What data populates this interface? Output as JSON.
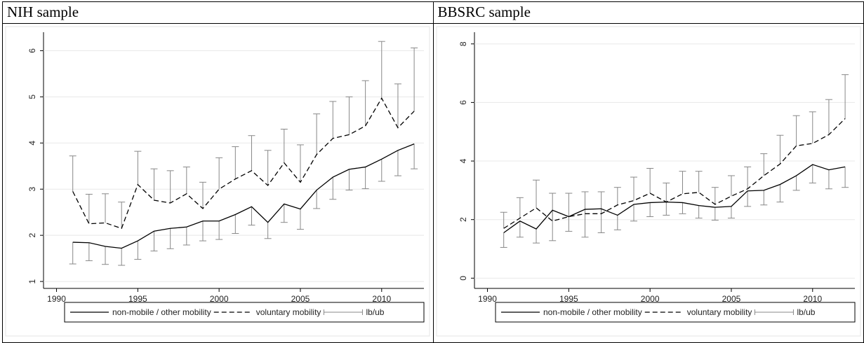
{
  "chart_data": [
    {
      "type": "line",
      "title": "NIH sample",
      "x": [
        1991,
        1992,
        1993,
        1994,
        1995,
        1996,
        1997,
        1998,
        1999,
        2000,
        2001,
        2002,
        2003,
        2004,
        2005,
        2006,
        2007,
        2008,
        2009,
        2010,
        2011,
        2012
      ],
      "series": [
        {
          "name": "non-mobile / other mobility",
          "color": "#000000",
          "dash": "solid",
          "values": [
            1.85,
            1.84,
            1.76,
            1.72,
            1.88,
            2.09,
            2.15,
            2.18,
            2.31,
            2.31,
            2.45,
            2.62,
            2.28,
            2.68,
            2.57,
            2.98,
            3.26,
            3.43,
            3.48,
            3.65,
            3.84,
            3.98
          ]
        },
        {
          "name": "voluntary mobility",
          "color": "#000000",
          "dash": "dashed",
          "values": [
            2.95,
            2.25,
            2.27,
            2.15,
            3.1,
            2.76,
            2.7,
            2.9,
            2.58,
            3.0,
            3.22,
            3.4,
            3.08,
            3.57,
            3.15,
            3.75,
            4.1,
            4.18,
            4.37,
            4.97,
            4.33,
            4.69
          ]
        }
      ],
      "error_bars": {
        "name": "lb/ub",
        "color": "#888888",
        "lower": [
          1.38,
          1.45,
          1.37,
          1.35,
          1.48,
          1.66,
          1.71,
          1.79,
          1.88,
          1.91,
          2.04,
          2.22,
          1.93,
          2.28,
          2.13,
          2.58,
          2.78,
          2.98,
          3.01,
          3.17,
          3.29,
          3.44
        ],
        "upper": [
          3.72,
          2.89,
          2.9,
          2.72,
          3.82,
          3.44,
          3.4,
          3.48,
          3.15,
          3.68,
          3.92,
          4.16,
          3.84,
          4.3,
          3.96,
          4.63,
          4.9,
          5.0,
          5.35,
          6.2,
          5.28,
          6.06
        ]
      },
      "xlim": [
        1989.2,
        2012.6
      ],
      "xticks": [
        1990,
        1995,
        2000,
        2005,
        2010
      ],
      "ylim": [
        0.85,
        6.4
      ],
      "yticks": [
        1,
        2,
        3,
        4,
        5,
        6
      ],
      "grid": true
    },
    {
      "type": "line",
      "title": "BBSRC sample",
      "x": [
        1991,
        1992,
        1993,
        1994,
        1995,
        1996,
        1997,
        1998,
        1999,
        2000,
        2001,
        2002,
        2003,
        2004,
        2005,
        2006,
        2007,
        2008,
        2009,
        2010,
        2011,
        2012
      ],
      "series": [
        {
          "name": "non-mobile / other mobility",
          "color": "#000000",
          "dash": "solid",
          "values": [
            1.55,
            1.95,
            1.68,
            2.32,
            2.1,
            2.35,
            2.37,
            2.15,
            2.52,
            2.58,
            2.6,
            2.58,
            2.48,
            2.42,
            2.45,
            2.98,
            3.0,
            3.2,
            3.5,
            3.88,
            3.7,
            3.8
          ]
        },
        {
          "name": "voluntary mobility",
          "color": "#000000",
          "dash": "dashed",
          "values": [
            1.7,
            2.05,
            2.4,
            1.95,
            2.1,
            2.2,
            2.2,
            2.5,
            2.65,
            2.9,
            2.6,
            2.88,
            2.93,
            2.52,
            2.8,
            3.05,
            3.5,
            3.9,
            4.52,
            4.6,
            4.9,
            5.45
          ]
        }
      ],
      "error_bars": {
        "name": "lb/ub",
        "color": "#888888",
        "lower": [
          1.05,
          1.4,
          1.2,
          1.28,
          1.6,
          1.4,
          1.55,
          1.65,
          1.95,
          2.1,
          2.15,
          2.2,
          2.05,
          1.98,
          2.05,
          2.45,
          2.5,
          2.6,
          3.0,
          3.25,
          3.05,
          3.1
        ],
        "upper": [
          2.25,
          2.75,
          3.35,
          2.9,
          2.9,
          2.95,
          2.95,
          3.1,
          3.45,
          3.75,
          3.25,
          3.65,
          3.65,
          3.1,
          3.5,
          3.8,
          4.25,
          4.88,
          5.55,
          5.68,
          6.1,
          6.95
        ]
      },
      "xlim": [
        1989.2,
        2012.6
      ],
      "xticks": [
        1990,
        1995,
        2000,
        2005,
        2010
      ],
      "ylim": [
        -0.35,
        8.4
      ],
      "yticks": [
        0,
        2,
        4,
        6,
        8
      ],
      "grid": true
    }
  ]
}
